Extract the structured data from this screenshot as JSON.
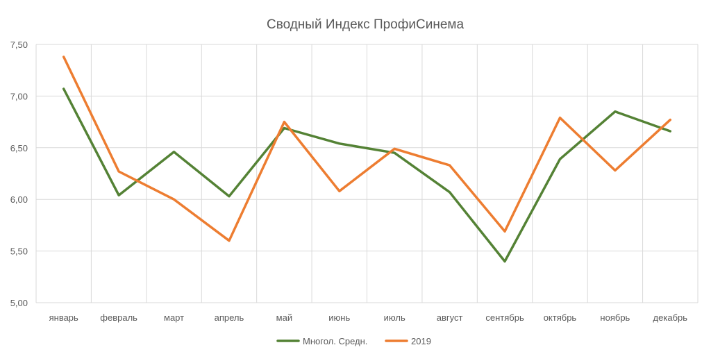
{
  "chart_data": {
    "type": "line",
    "title": "Сводный Индекс ПрофиСинема",
    "xlabel": "",
    "ylabel": "",
    "categories": [
      "январь",
      "февраль",
      "март",
      "апрель",
      "май",
      "июнь",
      "июль",
      "август",
      "сентябрь",
      "октябрь",
      "ноябрь",
      "декабрь"
    ],
    "ylim": [
      5.0,
      7.5
    ],
    "yticks": [
      "5,00",
      "5,50",
      "6,00",
      "6,50",
      "7,00",
      "7,50"
    ],
    "ytick_values": [
      5.0,
      5.5,
      6.0,
      6.5,
      7.0,
      7.5
    ],
    "grid": true,
    "legend_position": "bottom",
    "series": [
      {
        "name": "Многол. Средн.",
        "color": "#548235",
        "values": [
          7.07,
          6.04,
          6.46,
          6.03,
          6.69,
          6.54,
          6.45,
          6.07,
          5.4,
          6.39,
          6.85,
          6.66
        ]
      },
      {
        "name": "2019",
        "color": "#ed7d31",
        "values": [
          7.38,
          6.27,
          6.0,
          5.6,
          6.75,
          6.08,
          6.49,
          6.33,
          5.69,
          6.79,
          6.28,
          6.77
        ]
      }
    ]
  }
}
